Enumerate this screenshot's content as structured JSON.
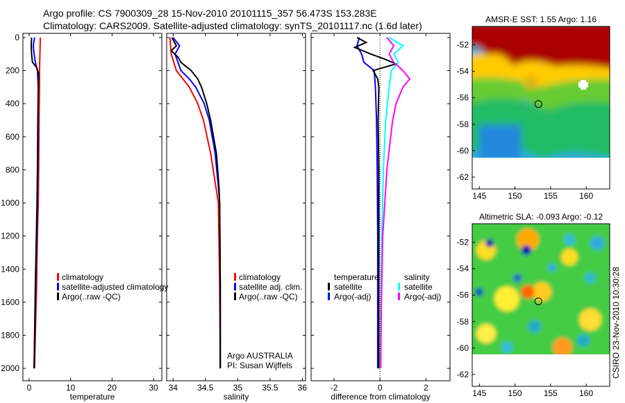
{
  "title": {
    "line1": "Argo profile: CS 7900309_28 15-Nov-2010 20101115_357 56.473S 153.283E",
    "line2": "Climatology: CARS2009. Satellite-adjusted climatology: synTS_20101117.nc (1.6d later)"
  },
  "credit": "CSIRO 23-Nov-2010 10:30:28",
  "chart_data": [
    {
      "type": "line",
      "name": "temperature",
      "xlabel": "temperature",
      "xlim": [
        -1.5,
        32
      ],
      "ylim": [
        2075,
        -25
      ],
      "xticks": [
        0,
        10,
        20,
        30
      ],
      "yticks": [
        0,
        200,
        400,
        600,
        800,
        1000,
        1200,
        1400,
        1600,
        1800,
        2000
      ],
      "legend": [
        "climatology",
        "satellite-adjusted climatology",
        "Argo(..raw -QC)"
      ],
      "series": [
        {
          "name": "climatology",
          "color": "#ff0000",
          "depth": [
            0,
            100,
            200,
            300,
            500,
            800,
            1000,
            1200,
            1500,
            1800,
            2000
          ],
          "values": [
            2.7,
            2.6,
            2.5,
            2.5,
            2.4,
            2.3,
            2.2,
            2.0,
            1.8,
            1.5,
            1.3
          ]
        },
        {
          "name": "satellite-adjusted climatology",
          "color": "#0000ff",
          "depth": [
            0,
            50,
            100,
            150,
            200,
            300,
            500,
            800,
            1000,
            1500,
            2000
          ],
          "values": [
            1.3,
            1.0,
            1.2,
            1.5,
            2.0,
            2.2,
            2.2,
            2.1,
            2.0,
            1.6,
            1.2
          ]
        },
        {
          "name": "Argo(..raw -QC)",
          "color": "#000000",
          "depth": [
            0,
            50,
            100,
            150,
            180,
            220,
            300,
            500,
            800,
            1000,
            1500,
            2000
          ],
          "values": [
            0.6,
            0.5,
            0.6,
            0.8,
            1.8,
            2.3,
            2.2,
            2.1,
            2.0,
            1.9,
            1.5,
            1.2
          ]
        }
      ]
    },
    {
      "type": "line",
      "name": "salinity",
      "xlabel": "salinity",
      "xlim": [
        33.9,
        36.05
      ],
      "ylim": [
        2075,
        -25
      ],
      "xticks": [
        34,
        34.5,
        35,
        35.5,
        36
      ],
      "yticks": [
        0,
        200,
        400,
        600,
        800,
        1000,
        1200,
        1400,
        1600,
        1800,
        2000
      ],
      "legend": [
        "climatology",
        "satellite adj. clim.",
        "Argo(..raw -QC)"
      ],
      "annotation": [
        "Argo AUSTRALIA",
        "PI: Susan Wijffels"
      ],
      "series": [
        {
          "name": "climatology",
          "color": "#ff0000",
          "depth": [
            0,
            100,
            200,
            250,
            300,
            400,
            500,
            700,
            900,
            1000,
            1500,
            2000
          ],
          "values": [
            33.95,
            33.97,
            34.05,
            34.15,
            34.25,
            34.38,
            34.47,
            34.58,
            34.66,
            34.7,
            34.72,
            34.73
          ]
        },
        {
          "name": "satellite adj. clim.",
          "color": "#0000ff",
          "depth": [
            0,
            50,
            100,
            200,
            250,
            300,
            400,
            500,
            700,
            900,
            1000,
            1500,
            2000
          ],
          "values": [
            34.0,
            34.1,
            34.03,
            34.12,
            34.25,
            34.35,
            34.48,
            34.56,
            34.65,
            34.7,
            34.72,
            34.73,
            34.73
          ]
        },
        {
          "name": "Argo(..raw -QC)",
          "color": "#000000",
          "depth": [
            0,
            50,
            80,
            120,
            150,
            200,
            250,
            300,
            400,
            500,
            700,
            900,
            1000,
            1500,
            2000
          ],
          "values": [
            33.98,
            34.05,
            33.97,
            34.08,
            34.12,
            34.28,
            34.38,
            34.44,
            34.52,
            34.58,
            34.67,
            34.71,
            34.72,
            34.73,
            34.73
          ]
        }
      ]
    },
    {
      "type": "line",
      "name": "difference",
      "xlabel": "difference from climatology",
      "xlim": [
        -3.0,
        3.05
      ],
      "ylim": [
        2075,
        -25
      ],
      "xticks": [
        -2,
        0,
        2
      ],
      "yticks": [
        0,
        200,
        400,
        600,
        800,
        1000,
        1200,
        1400,
        1600,
        1800,
        2000
      ],
      "legend_temperature": {
        "heading": "temperature",
        "items": [
          "satellite",
          "Argo(-adj)"
        ]
      },
      "legend_salinity": {
        "heading": "salinity",
        "items": [
          "satellite",
          "Argo(-adj)"
        ]
      },
      "series": [
        {
          "name": "temperature satellite",
          "color": "#0000ff",
          "depth": [
            0,
            50,
            100,
            150,
            200,
            300,
            500,
            800,
            1200,
            1600,
            2000
          ],
          "values": [
            -0.9,
            -1.0,
            -0.8,
            -0.7,
            -0.25,
            -0.2,
            -0.15,
            -0.12,
            -0.1,
            -0.1,
            -0.1
          ]
        },
        {
          "name": "temperature Argo(-adj)",
          "color": "#000000",
          "depth": [
            0,
            30,
            60,
            100,
            130,
            160,
            200,
            250,
            300,
            500,
            800,
            1200,
            1600,
            2000
          ],
          "values": [
            -1.0,
            -0.6,
            -1.1,
            -0.4,
            0.2,
            0.7,
            -0.3,
            -0.1,
            -0.05,
            -0.08,
            -0.05,
            -0.05,
            -0.05,
            -0.05
          ]
        },
        {
          "name": "salinity satellite",
          "color": "#00ffff",
          "depth": [
            0,
            50,
            100,
            150,
            200,
            300,
            500,
            800,
            1200,
            1600,
            2000
          ],
          "values": [
            0.4,
            1.0,
            0.6,
            0.8,
            0.5,
            0.4,
            0.25,
            0.15,
            0.08,
            0.05,
            0.03
          ]
        },
        {
          "name": "salinity Argo(-adj)",
          "color": "#ff00ff",
          "depth": [
            0,
            50,
            100,
            150,
            200,
            250,
            300,
            400,
            500,
            800,
            1200,
            1600,
            2000
          ],
          "values": [
            0.3,
            0.6,
            0.4,
            0.6,
            1.0,
            1.3,
            1.0,
            0.7,
            0.55,
            0.3,
            0.12,
            0.06,
            0.03
          ]
        }
      ]
    }
  ],
  "maps": [
    {
      "title": "AMSR-E SST: 1.55 Argo: 1.16",
      "lat_ticks": [
        -52,
        -54,
        -56,
        -58,
        -60,
        -62
      ],
      "lon_ticks": [
        145,
        150,
        155,
        160
      ],
      "argo_lon": 153.283,
      "argo_lat": -56.473
    },
    {
      "title": "Altimetric SLA: -0.093 Argo: -0.12",
      "lat_ticks": [
        -52,
        -54,
        -56,
        -58,
        -60,
        -62
      ],
      "lon_ticks": [
        145,
        150,
        155,
        160
      ],
      "argo_lon": 153.283,
      "argo_lat": -56.473
    }
  ]
}
